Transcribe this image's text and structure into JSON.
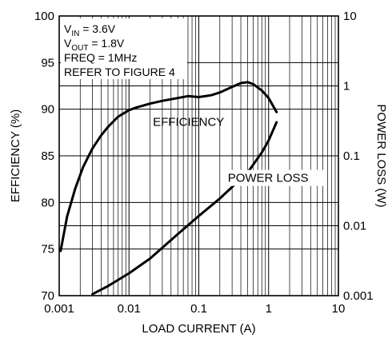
{
  "chart_data": {
    "type": "line",
    "title": "",
    "xlabel": "LOAD CURRENT (A)",
    "ylabel_left": "EFFICIENCY (%)",
    "ylabel_right": "POWER LOSS (W)",
    "x_scale": "log",
    "xlim": [
      0.001,
      10
    ],
    "ylim_left": [
      70,
      100
    ],
    "y_right_scale": "log",
    "ylim_right": [
      0.001,
      10
    ],
    "grid": true,
    "x_ticks": [
      "0.001",
      "0.01",
      "0.1",
      "1",
      "10"
    ],
    "y_left_ticks": [
      "70",
      "75",
      "80",
      "85",
      "90",
      "95",
      "100"
    ],
    "y_right_ticks": [
      "0.001",
      "0.01",
      "0.1",
      "1",
      "10"
    ],
    "conditions": [
      {
        "base": "V",
        "sub": "IN",
        "rest": " = 3.6V"
      },
      {
        "base": "V",
        "sub": "OUT",
        "rest": " = 1.8V"
      },
      {
        "base": "FREQ = 1MHz",
        "sub": "",
        "rest": ""
      },
      {
        "base": "REFER TO FIGURE 4",
        "sub": "",
        "rest": ""
      }
    ],
    "series": [
      {
        "name": "EFFICIENCY",
        "axis": "left",
        "x": [
          0.00105,
          0.0013,
          0.0017,
          0.0022,
          0.003,
          0.004,
          0.005,
          0.007,
          0.01,
          0.013,
          0.02,
          0.03,
          0.05,
          0.07,
          0.1,
          0.15,
          0.2,
          0.3,
          0.4,
          0.5,
          0.6,
          0.8,
          1.0,
          1.3
        ],
        "values": [
          74.8,
          78.5,
          81.5,
          83.8,
          85.8,
          87.2,
          88.1,
          89.2,
          89.9,
          90.2,
          90.6,
          90.9,
          91.2,
          91.4,
          91.3,
          91.5,
          91.8,
          92.4,
          92.8,
          92.9,
          92.7,
          92.0,
          91.2,
          89.7
        ]
      },
      {
        "name": "POWER LOSS",
        "axis": "right",
        "x": [
          0.003,
          0.005,
          0.01,
          0.02,
          0.05,
          0.1,
          0.2,
          0.5,
          0.8,
          1.0,
          1.3
        ],
        "values": [
          0.00105,
          0.00137,
          0.00209,
          0.00339,
          0.00759,
          0.0138,
          0.0245,
          0.0575,
          0.112,
          0.166,
          0.302
        ]
      }
    ],
    "line_color": "#000000",
    "grid_color": "#000000"
  }
}
